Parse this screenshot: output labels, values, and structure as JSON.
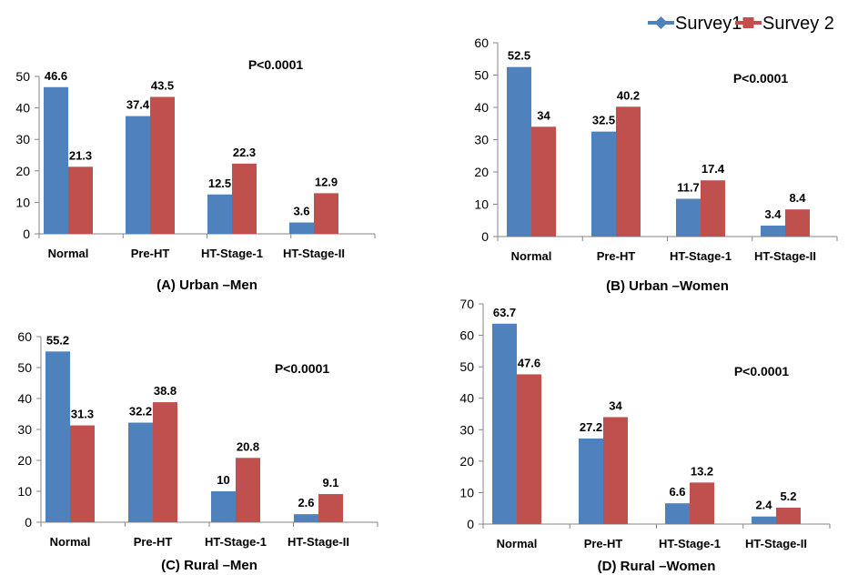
{
  "legend": {
    "placement": "top-right",
    "entries": [
      {
        "name": "Survey1",
        "color": "#4F81BD",
        "icon": "diamond-line-marker-icon"
      },
      {
        "name": "Survey 2",
        "color": "#C0504D",
        "icon": "square-line-marker-icon"
      }
    ]
  },
  "chart_data": [
    {
      "type": "bar",
      "title": "(A) Urban –Men",
      "annotation": "P<0.0001",
      "categories": [
        "Normal",
        "Pre-HT",
        "HT-Stage-1",
        "HT-Stage-II"
      ],
      "series": [
        {
          "name": "Survey1",
          "color": "#4F81BD",
          "values": [
            46.6,
            37.4,
            12.5,
            3.6
          ],
          "labels": [
            "46.6",
            "37.4",
            "12.5",
            "3.6"
          ]
        },
        {
          "name": "Survey 2",
          "color": "#C0504D",
          "values": [
            21.3,
            43.5,
            22.3,
            12.9
          ],
          "labels": [
            "21.3",
            "43.5",
            "22.3",
            "12.9"
          ]
        }
      ],
      "ylim": [
        0,
        50
      ],
      "yticks": [
        0,
        10,
        20,
        30,
        40,
        50
      ],
      "grid": false
    },
    {
      "type": "bar",
      "title": "(B) Urban –Women",
      "annotation": "P<0.0001",
      "categories": [
        "Normal",
        "Pre-HT",
        "HT-Stage-1",
        "HT-Stage-II"
      ],
      "series": [
        {
          "name": "Survey1",
          "color": "#4F81BD",
          "values": [
            52.5,
            32.5,
            11.7,
            3.4
          ],
          "labels": [
            "52.5",
            "32.5",
            "11.7",
            "3.4"
          ]
        },
        {
          "name": "Survey 2",
          "color": "#C0504D",
          "values": [
            34,
            40.2,
            17.4,
            8.4
          ],
          "labels": [
            "34",
            "40.2",
            "17.4",
            "8.4"
          ]
        }
      ],
      "ylim": [
        0,
        60
      ],
      "yticks": [
        0,
        10,
        20,
        30,
        40,
        50,
        60
      ],
      "grid": false
    },
    {
      "type": "bar",
      "title": "(C) Rural –Men",
      "annotation": "P<0.0001",
      "categories": [
        "Normal",
        "Pre-HT",
        "HT-Stage-1",
        "HT-Stage-II"
      ],
      "series": [
        {
          "name": "Survey1",
          "color": "#4F81BD",
          "values": [
            55.2,
            32.2,
            10,
            2.6
          ],
          "labels": [
            "55.2",
            "32.2",
            "10",
            "2.6"
          ]
        },
        {
          "name": "Survey 2",
          "color": "#C0504D",
          "values": [
            31.3,
            38.8,
            20.8,
            9.1
          ],
          "labels": [
            "31.3",
            "38.8",
            "20.8",
            "9.1"
          ]
        }
      ],
      "ylim": [
        0,
        60
      ],
      "yticks": [
        0,
        10,
        20,
        30,
        40,
        50,
        60
      ],
      "grid": false
    },
    {
      "type": "bar",
      "title": "(D) Rural –Women",
      "annotation": "P<0.0001",
      "categories": [
        "Normal",
        "Pre-HT",
        "HT-Stage-1",
        "HT-Stage-II"
      ],
      "series": [
        {
          "name": "Survey1",
          "color": "#4F81BD",
          "values": [
            63.7,
            27.2,
            6.6,
            2.4
          ],
          "labels": [
            "63.7",
            "27.2",
            "6.6",
            "2.4"
          ]
        },
        {
          "name": "Survey 2",
          "color": "#C0504D",
          "values": [
            47.6,
            34,
            13.2,
            5.2
          ],
          "labels": [
            "47.6",
            "34",
            "13.2",
            "5.2"
          ]
        }
      ],
      "ylim": [
        0,
        70
      ],
      "yticks": [
        0,
        10,
        20,
        30,
        40,
        50,
        60,
        70
      ],
      "grid": false
    }
  ]
}
